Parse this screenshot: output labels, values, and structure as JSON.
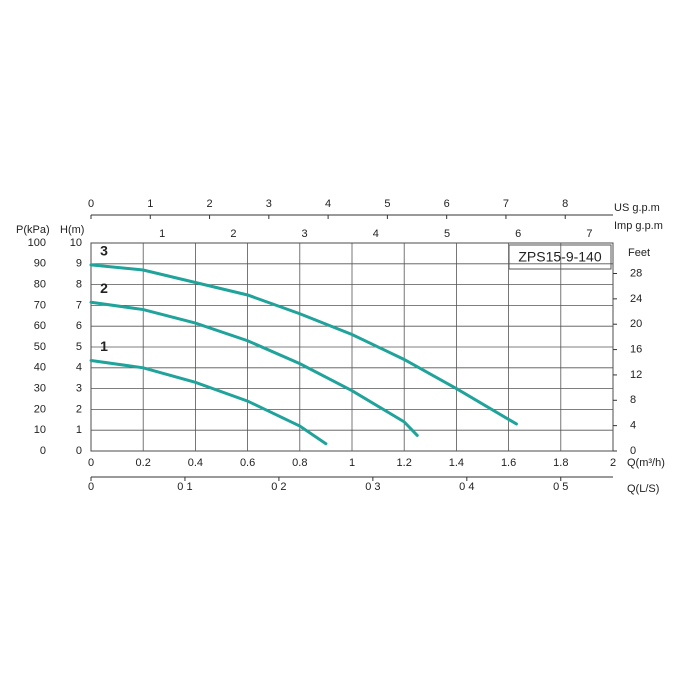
{
  "chart_data": {
    "type": "line",
    "title": "ZPS15-9-140",
    "xlabel": "Q(m³/h)",
    "ylabel": "H(m)",
    "xlim": [
      0,
      2
    ],
    "xticks": [
      0,
      0.2,
      0.4,
      0.6,
      0.8,
      1,
      1.2,
      1.4,
      1.6,
      1.8,
      2
    ],
    "ylim": [
      0,
      10
    ],
    "yticks": [
      0,
      1,
      2,
      3,
      4,
      5,
      6,
      7,
      8,
      9,
      10
    ],
    "grid": true,
    "series": [
      {
        "name": "1",
        "color": "#1fa39a",
        "x": [
          0,
          0.2,
          0.4,
          0.6,
          0.8,
          0.9
        ],
        "values": [
          4.35,
          4.0,
          3.3,
          2.4,
          1.2,
          0.35
        ]
      },
      {
        "name": "2",
        "color": "#1fa39a",
        "x": [
          0,
          0.2,
          0.4,
          0.6,
          0.8,
          1.0,
          1.2,
          1.25
        ],
        "values": [
          7.15,
          6.8,
          6.15,
          5.3,
          4.2,
          2.9,
          1.4,
          0.75
        ]
      },
      {
        "name": "3",
        "color": "#1fa39a",
        "x": [
          0,
          0.2,
          0.4,
          0.6,
          0.8,
          1.0,
          1.2,
          1.4,
          1.63
        ],
        "values": [
          8.95,
          8.7,
          8.1,
          7.5,
          6.6,
          5.6,
          4.4,
          3.0,
          1.3
        ]
      }
    ],
    "axes": [
      {
        "position": "bottom",
        "label": "Q(L/S)",
        "lim": [
          0,
          0.5556
        ],
        "ticks": [
          0,
          {
            "value": 0.1,
            "label": "0 1"
          },
          {
            "value": 0.2,
            "label": "0 2"
          },
          {
            "value": 0.3,
            "label": "0 3"
          },
          {
            "value": 0.4,
            "label": "0 4"
          },
          {
            "value": 0.5,
            "label": "0 5"
          }
        ]
      },
      {
        "position": "top",
        "label": "US  g.p.m",
        "lim": [
          0,
          8.806
        ],
        "ticks": [
          0,
          1,
          2,
          3,
          4,
          5,
          6,
          7,
          8
        ]
      },
      {
        "position": "top",
        "label": "Imp  g.p.m",
        "lim": [
          0,
          7.331
        ],
        "ticks": [
          1,
          2,
          3,
          4,
          5,
          6,
          7
        ]
      },
      {
        "position": "left",
        "label": "P(kPa)",
        "lim": [
          0,
          100
        ],
        "ticks": [
          0,
          10,
          20,
          30,
          40,
          50,
          60,
          70,
          80,
          90,
          100
        ]
      },
      {
        "position": "right",
        "label": "Feet",
        "lim": [
          0,
          32.81
        ],
        "ticks": [
          0,
          4,
          8,
          12,
          16,
          20,
          24,
          28
        ]
      }
    ]
  }
}
